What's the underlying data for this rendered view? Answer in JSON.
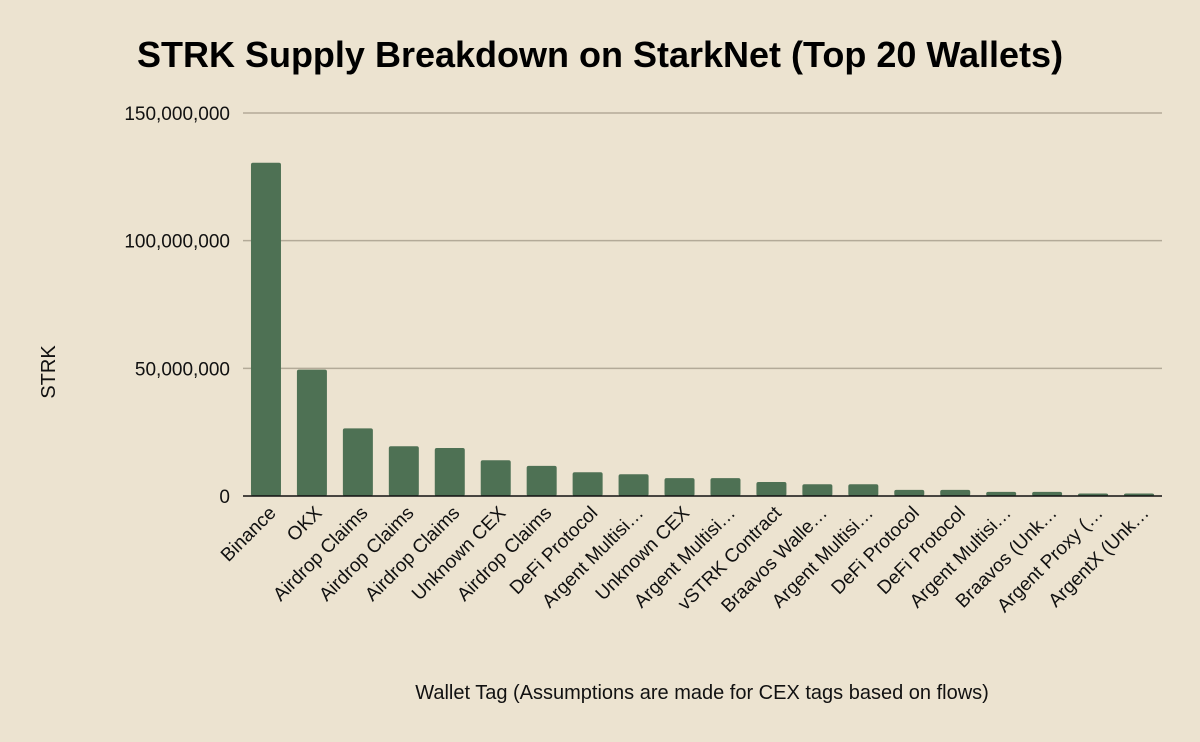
{
  "chart_data": {
    "type": "bar",
    "title": "STRK Supply Breakdown on StarkNet (Top 20 Wallets)",
    "xlabel": "Wallet Tag (Assumptions are made for CEX tags based on flows)",
    "ylabel": "STRK",
    "ylim": [
      0,
      150000000
    ],
    "yticks": [
      0,
      50000000,
      100000000,
      150000000
    ],
    "ytick_labels": [
      "0",
      "50,000,000",
      "100,000,000",
      "150,000,000"
    ],
    "grid": true,
    "bar_color": "#4e7154",
    "background": "#ece3d0",
    "categories": [
      "Binance",
      "OKX",
      "Airdrop Claims",
      "Airdrop Claims",
      "Airdrop Claims",
      "Unknown CEX",
      "Airdrop Claims",
      "DeFi Protocol",
      "Argent Multisi…",
      "Unknown CEX",
      "Argent Multisi…",
      "vSTRK Contract",
      "Braavos Walle…",
      "Argent Multisi…",
      "DeFi Protocol",
      "DeFi Protocol",
      "Argent Multisi…",
      "Braavos (Unk…",
      "Argent Proxy (…",
      "ArgentX (Unk…"
    ],
    "values": [
      130500000,
      49500000,
      26500000,
      19500000,
      18800000,
      14000000,
      11800000,
      9300000,
      8500000,
      7000000,
      7000000,
      5500000,
      4600000,
      4600000,
      2400000,
      2400000,
      1600000,
      1600000,
      1000000,
      1000000
    ]
  }
}
